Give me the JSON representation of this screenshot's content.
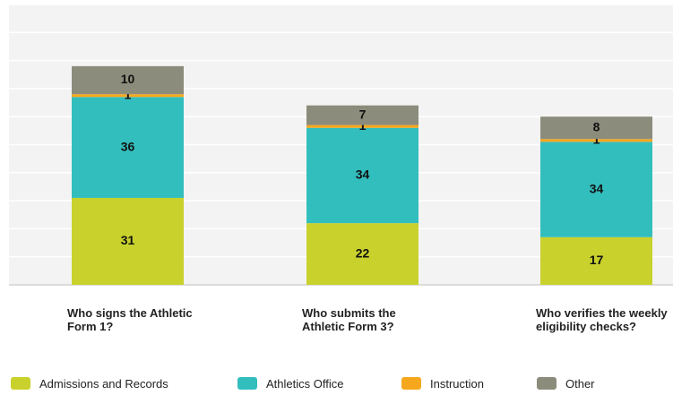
{
  "chart_data": {
    "type": "stacked_bar",
    "categories": [
      "Who signs the Athletic Form 1?",
      "Who submits the Athletic Form 3?",
      "Who verifies the weekly eligibility checks?"
    ],
    "series": [
      {
        "name": "Admissions and Records",
        "color": "#c9d12c",
        "values": [
          31,
          22,
          17
        ]
      },
      {
        "name": "Athletics Office",
        "color": "#33bebe",
        "values": [
          36,
          34,
          34
        ]
      },
      {
        "name": "Instruction",
        "color": "#f5a81e",
        "values": [
          1,
          1,
          1
        ]
      },
      {
        "name": "Other",
        "color": "#8c8c7c",
        "values": [
          10,
          7,
          8
        ]
      }
    ],
    "ylim": [
      0,
      100
    ],
    "yticks": [
      0,
      10,
      20,
      30,
      40,
      50,
      60,
      70,
      80,
      90,
      100
    ],
    "grid": true
  }
}
